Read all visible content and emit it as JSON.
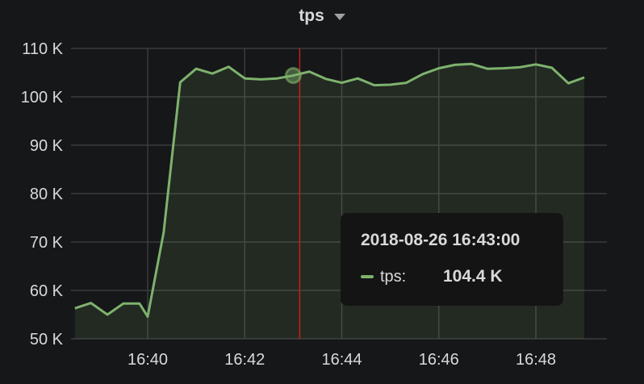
{
  "panel": {
    "title": "tps"
  },
  "colors": {
    "series": "#7eb26d",
    "crosshair": "#c81e1e",
    "grid": "#3c3c3e",
    "background": "#161719"
  },
  "tooltip": {
    "time": "2018-08-26 16:43:00",
    "series_name": "tps:",
    "series_value": "104.4 K",
    "hover_minute": 43.0
  },
  "chart_data": {
    "type": "area",
    "title": "tps",
    "xlabel": "",
    "ylabel": "",
    "xlim": [
      38.5,
      49.5
    ],
    "ylim": [
      50000,
      110000
    ],
    "yticks": [
      {
        "value": 50000,
        "label": "50 K"
      },
      {
        "value": 60000,
        "label": "60 K"
      },
      {
        "value": 70000,
        "label": "70 K"
      },
      {
        "value": 80000,
        "label": "80 K"
      },
      {
        "value": 90000,
        "label": "90 K"
      },
      {
        "value": 100000,
        "label": "100 K"
      },
      {
        "value": 110000,
        "label": "110 K"
      }
    ],
    "xticks": [
      {
        "value": 40,
        "label": "16:40"
      },
      {
        "value": 42,
        "label": "16:42"
      },
      {
        "value": 44,
        "label": "16:44"
      },
      {
        "value": 46,
        "label": "16:46"
      },
      {
        "value": 48,
        "label": "16:48"
      }
    ],
    "grid": true,
    "series": [
      {
        "name": "tps",
        "x": [
          38.5,
          38.83,
          39.17,
          39.5,
          39.83,
          40.0,
          40.33,
          40.67,
          41.0,
          41.33,
          41.67,
          42.0,
          42.33,
          42.67,
          43.0,
          43.33,
          43.67,
          44.0,
          44.33,
          44.67,
          45.0,
          45.33,
          45.67,
          46.0,
          46.33,
          46.67,
          47.0,
          47.33,
          47.67,
          48.0,
          48.33,
          48.67,
          49.0
        ],
        "values": [
          56300,
          57400,
          55000,
          57300,
          57300,
          54600,
          72000,
          103000,
          105800,
          104800,
          106200,
          103800,
          103600,
          103800,
          104400,
          105200,
          103700,
          102900,
          103800,
          102400,
          102500,
          102900,
          104700,
          105900,
          106600,
          106800,
          105800,
          105900,
          106100,
          106700,
          106000,
          102800,
          104000
        ]
      }
    ]
  }
}
